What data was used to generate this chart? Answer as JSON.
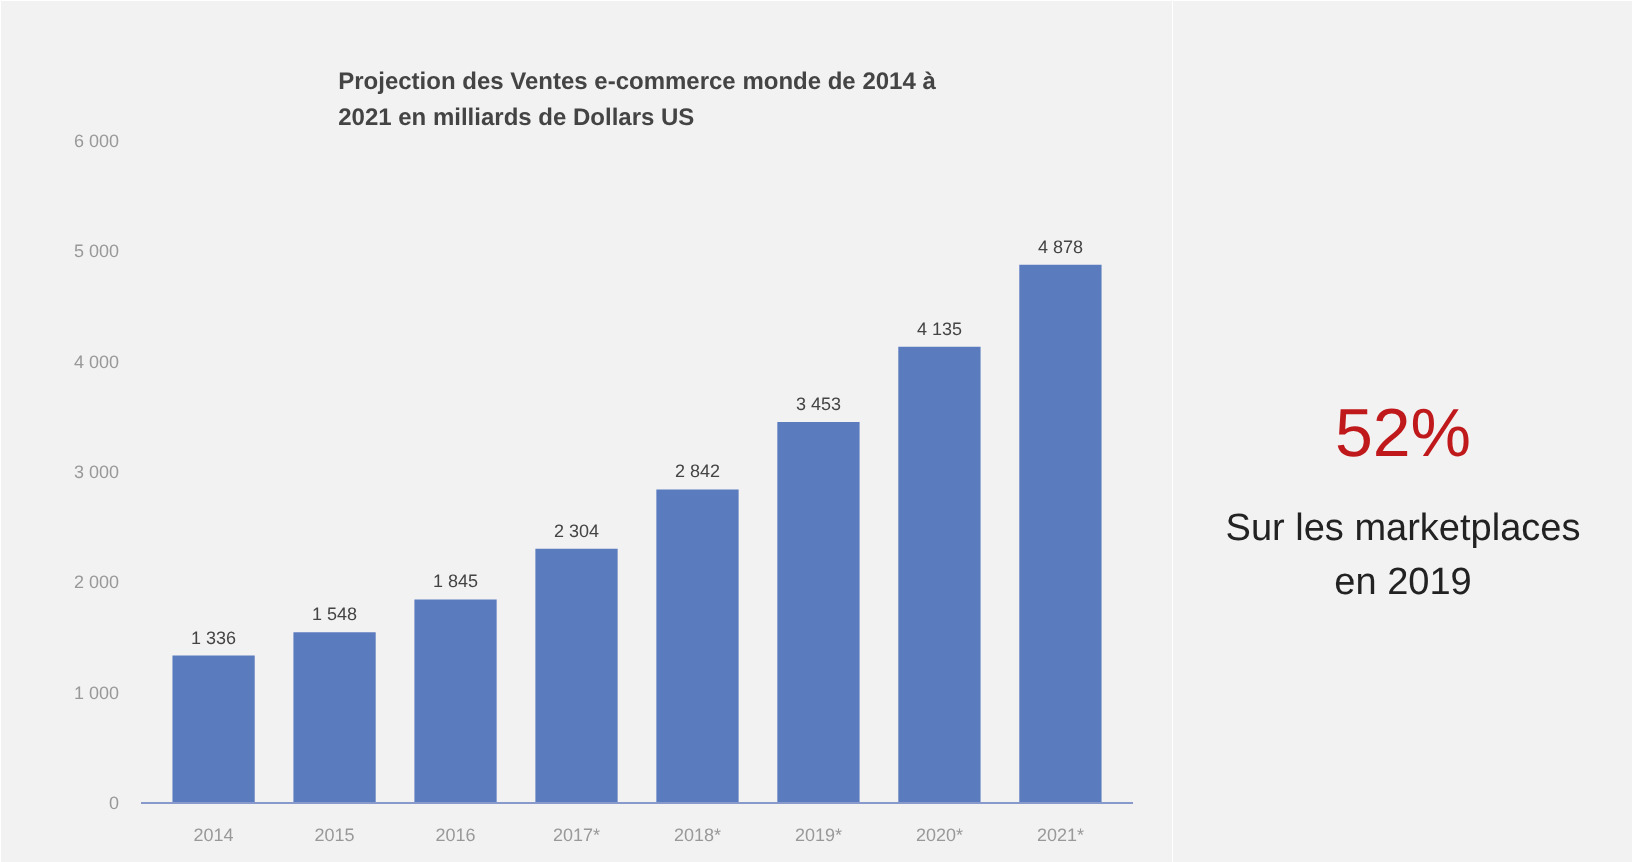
{
  "chart_data": {
    "type": "bar",
    "title": "Projection des Ventes e-commerce monde de 2014 à\n2021 en milliards de Dollars US",
    "categories": [
      "2014",
      "2015",
      "2016",
      "2017*",
      "2018*",
      "2019*",
      "2020*",
      "2021*"
    ],
    "values": [
      1336,
      1548,
      1845,
      2304,
      2842,
      3453,
      4135,
      4878
    ],
    "value_labels": [
      "1 336",
      "1 548",
      "1 845",
      "2 304",
      "2 842",
      "3 453",
      "4 135",
      "4 878"
    ],
    "color": "#5b7bbf",
    "ylim": [
      0,
      6000
    ],
    "yticks": [
      0,
      {
        "value": 1000,
        "label": "1 000"
      },
      {
        "value": 2000,
        "label": "2 000"
      },
      {
        "value": 3000,
        "label": "3 000"
      },
      {
        "value": 4000,
        "label": "4 000"
      },
      {
        "value": 5000,
        "label": "5 000"
      },
      {
        "value": 6000,
        "label": "6 000"
      }
    ],
    "grid": false,
    "annotations": [
      "52%",
      "Sur les marketplaces\nen 2019"
    ]
  }
}
